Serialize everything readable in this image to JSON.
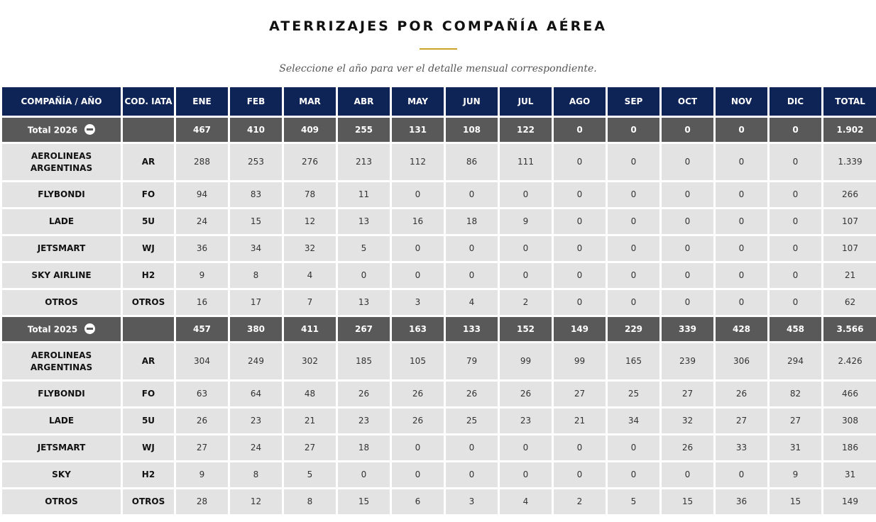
{
  "title": "ATERRIZAJES POR COMPAÑÍA AÉREA",
  "subtitle": "Seleccione el año para ver el detalle mensual correspondiente.",
  "headers": [
    "COMPAÑÍA / AÑO",
    "COD. IATA",
    "ENE",
    "FEB",
    "MAR",
    "ABR",
    "MAY",
    "JUN",
    "JUL",
    "AGO",
    "SEP",
    "OCT",
    "NOV",
    "DIC",
    "TOTAL"
  ],
  "groups": [
    {
      "label": "Total 2026",
      "totals": [
        "467",
        "410",
        "409",
        "255",
        "131",
        "108",
        "122",
        "0",
        "0",
        "0",
        "0",
        "0",
        "1.902"
      ],
      "rows": [
        {
          "name": "AEROLINEAS ARGENTINAS",
          "code": "AR",
          "values": [
            "288",
            "253",
            "276",
            "213",
            "112",
            "86",
            "111",
            "0",
            "0",
            "0",
            "0",
            "0",
            "1.339"
          ]
        },
        {
          "name": "FLYBONDI",
          "code": "FO",
          "values": [
            "94",
            "83",
            "78",
            "11",
            "0",
            "0",
            "0",
            "0",
            "0",
            "0",
            "0",
            "0",
            "266"
          ]
        },
        {
          "name": "LADE",
          "code": "5U",
          "values": [
            "24",
            "15",
            "12",
            "13",
            "16",
            "18",
            "9",
            "0",
            "0",
            "0",
            "0",
            "0",
            "107"
          ]
        },
        {
          "name": "JETSMART",
          "code": "WJ",
          "values": [
            "36",
            "34",
            "32",
            "5",
            "0",
            "0",
            "0",
            "0",
            "0",
            "0",
            "0",
            "0",
            "107"
          ]
        },
        {
          "name": "SKY AIRLINE",
          "code": "H2",
          "values": [
            "9",
            "8",
            "4",
            "0",
            "0",
            "0",
            "0",
            "0",
            "0",
            "0",
            "0",
            "0",
            "21"
          ]
        },
        {
          "name": "OTROS",
          "code": "OTROS",
          "values": [
            "16",
            "17",
            "7",
            "13",
            "3",
            "4",
            "2",
            "0",
            "0",
            "0",
            "0",
            "0",
            "62"
          ]
        }
      ]
    },
    {
      "label": "Total 2025",
      "totals": [
        "457",
        "380",
        "411",
        "267",
        "163",
        "133",
        "152",
        "149",
        "229",
        "339",
        "428",
        "458",
        "3.566"
      ],
      "rows": [
        {
          "name": "AEROLINEAS ARGENTINAS",
          "code": "AR",
          "values": [
            "304",
            "249",
            "302",
            "185",
            "105",
            "79",
            "99",
            "99",
            "165",
            "239",
            "306",
            "294",
            "2.426"
          ]
        },
        {
          "name": "FLYBONDI",
          "code": "FO",
          "values": [
            "63",
            "64",
            "48",
            "26",
            "26",
            "26",
            "26",
            "27",
            "25",
            "27",
            "26",
            "82",
            "466"
          ]
        },
        {
          "name": "LADE",
          "code": "5U",
          "values": [
            "26",
            "23",
            "21",
            "23",
            "26",
            "25",
            "23",
            "21",
            "34",
            "32",
            "27",
            "27",
            "308"
          ]
        },
        {
          "name": "JETSMART",
          "code": "WJ",
          "values": [
            "27",
            "24",
            "27",
            "18",
            "0",
            "0",
            "0",
            "0",
            "0",
            "26",
            "33",
            "31",
            "186"
          ]
        },
        {
          "name": "SKY",
          "code": "H2",
          "values": [
            "9",
            "8",
            "5",
            "0",
            "0",
            "0",
            "0",
            "0",
            "0",
            "0",
            "0",
            "9",
            "31"
          ]
        },
        {
          "name": "OTROS",
          "code": "OTROS",
          "values": [
            "28",
            "12",
            "8",
            "15",
            "6",
            "3",
            "4",
            "2",
            "5",
            "15",
            "36",
            "15",
            "149"
          ]
        }
      ]
    }
  ],
  "colors": {
    "header_bg": "#0e2356",
    "total_bg": "#595959",
    "row_bg": "#e3e3e3",
    "accent": "#c9a227"
  },
  "icons": {
    "collapse": "minus-circle-icon"
  }
}
